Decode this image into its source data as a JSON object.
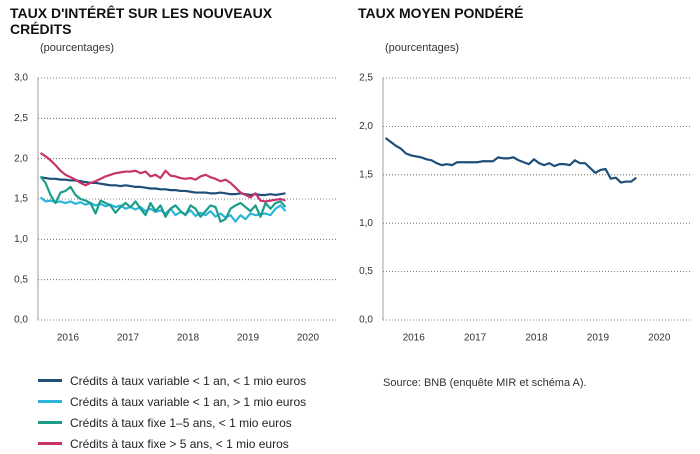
{
  "chart_data": [
    {
      "type": "line",
      "title": "TAUX D'INTÉRÊT SUR LES NOUVEAUX CRÉDITS",
      "subtitle": "(pourcentages)",
      "categories": [
        null,
        null,
        null,
        null,
        null,
        "2016",
        null,
        null,
        null,
        null,
        null,
        null,
        null,
        null,
        null,
        null,
        null,
        "2017",
        null,
        null,
        null,
        null,
        null,
        null,
        null,
        null,
        null,
        null,
        null,
        "2018",
        null,
        null,
        null,
        null,
        null,
        null,
        null,
        null,
        null,
        null,
        null,
        "2019",
        null,
        null,
        null,
        null,
        null,
        null,
        null,
        null,
        null,
        null,
        null,
        "2020",
        null,
        null,
        null,
        null,
        null,
        null
      ],
      "ylim": [
        0,
        3
      ],
      "yticks": [
        {
          "value": 0,
          "label": "0,0"
        },
        {
          "value": 0.5,
          "label": "0,5"
        },
        {
          "value": 1,
          "label": "1,0"
        },
        {
          "value": 1.5,
          "label": "1,5"
        },
        {
          "value": 2,
          "label": "2,0"
        },
        {
          "value": 2.5,
          "label": "2,5"
        },
        {
          "value": 3,
          "label": "3,0"
        }
      ],
      "grid": true,
      "series": [
        {
          "name": "Crédits à taux variable < 1 an, < 1 mio euros",
          "color": "#1f4e79",
          "values": [
            1.77,
            1.76,
            1.75,
            1.75,
            1.74,
            1.74,
            1.73,
            1.73,
            1.72,
            1.71,
            1.7,
            1.7,
            1.69,
            1.68,
            1.67,
            1.67,
            1.66,
            1.67,
            1.66,
            1.65,
            1.65,
            1.64,
            1.63,
            1.63,
            1.62,
            1.62,
            1.61,
            1.61,
            1.6,
            1.6,
            1.59,
            1.58,
            1.58,
            1.58,
            1.57,
            1.57,
            1.58,
            1.57,
            1.56,
            1.56,
            1.57,
            1.56,
            1.55,
            1.56,
            1.55,
            1.55,
            1.56,
            1.55,
            1.56,
            1.57,
            null,
            null,
            null,
            null,
            null,
            null,
            null,
            null,
            null,
            null
          ]
        },
        {
          "name": "Crédits à taux variable < 1 an, > 1 mio euros",
          "color": "#2bb5d8",
          "values": [
            1.52,
            1.47,
            1.48,
            1.46,
            1.47,
            1.45,
            1.47,
            1.44,
            1.46,
            1.43,
            1.45,
            1.42,
            1.44,
            1.41,
            1.43,
            1.4,
            1.42,
            1.38,
            1.4,
            1.37,
            1.4,
            1.35,
            1.38,
            1.34,
            1.36,
            1.32,
            1.38,
            1.3,
            1.34,
            1.31,
            1.36,
            1.29,
            1.33,
            1.3,
            1.35,
            1.28,
            1.32,
            1.27,
            1.3,
            1.22,
            1.3,
            1.25,
            1.32,
            1.3,
            1.31,
            1.32,
            1.3,
            1.38,
            1.42,
            1.35,
            null,
            null,
            null,
            null,
            null,
            null,
            null,
            null,
            null,
            null
          ]
        },
        {
          "name": "Crédits à taux fixe 1–5 ans, < 1 mio euros",
          "color": "#1a9e8a",
          "values": [
            1.78,
            1.7,
            1.55,
            1.45,
            1.58,
            1.6,
            1.65,
            1.55,
            1.5,
            1.48,
            1.45,
            1.32,
            1.48,
            1.45,
            1.42,
            1.33,
            1.4,
            1.45,
            1.4,
            1.47,
            1.38,
            1.3,
            1.45,
            1.35,
            1.42,
            1.28,
            1.38,
            1.42,
            1.35,
            1.3,
            1.42,
            1.38,
            1.28,
            1.35,
            1.42,
            1.4,
            1.22,
            1.25,
            1.38,
            1.42,
            1.45,
            1.4,
            1.35,
            1.42,
            1.28,
            1.45,
            1.38,
            1.45,
            1.47,
            1.4,
            null,
            null,
            null,
            null,
            null,
            null,
            null,
            null,
            null,
            null
          ]
        },
        {
          "name": "Crédits à taux fixe > 5 ans, < 1 mio euros",
          "color": "#c7336b",
          "values": [
            2.07,
            2.03,
            1.98,
            1.92,
            1.85,
            1.8,
            1.77,
            1.74,
            1.7,
            1.67,
            1.7,
            1.72,
            1.75,
            1.78,
            1.8,
            1.82,
            1.83,
            1.84,
            1.84,
            1.85,
            1.82,
            1.84,
            1.78,
            1.8,
            1.76,
            1.85,
            1.79,
            1.78,
            1.76,
            1.75,
            1.76,
            1.74,
            1.78,
            1.8,
            1.77,
            1.75,
            1.72,
            1.74,
            1.7,
            1.64,
            1.58,
            1.55,
            1.52,
            1.57,
            1.48,
            1.47,
            1.48,
            1.49,
            1.5,
            1.48,
            null,
            null,
            null,
            null,
            null,
            null,
            null,
            null,
            null,
            null
          ]
        }
      ]
    },
    {
      "type": "line",
      "title": "TAUX MOYEN PONDÉRÉ",
      "subtitle": "(pourcentages)",
      "source": "Source: BNB (enquête MIR et schéma A).",
      "categories": [
        null,
        null,
        null,
        null,
        null,
        "2016",
        null,
        null,
        null,
        null,
        null,
        null,
        null,
        null,
        null,
        null,
        null,
        "2017",
        null,
        null,
        null,
        null,
        null,
        null,
        null,
        null,
        null,
        null,
        null,
        "2018",
        null,
        null,
        null,
        null,
        null,
        null,
        null,
        null,
        null,
        null,
        null,
        "2019",
        null,
        null,
        null,
        null,
        null,
        null,
        null,
        null,
        null,
        null,
        null,
        "2020",
        null,
        null,
        null,
        null,
        null,
        null
      ],
      "ylim": [
        0,
        2.5
      ],
      "yticks": [
        {
          "value": 0,
          "label": "0,0"
        },
        {
          "value": 0.5,
          "label": "0,5"
        },
        {
          "value": 1,
          "label": "1,0"
        },
        {
          "value": 1.5,
          "label": "1,5"
        },
        {
          "value": 2,
          "label": "2,0"
        },
        {
          "value": 2.5,
          "label": "2,5"
        }
      ],
      "grid": true,
      "series": [
        {
          "name": null,
          "color": "#1f4e79",
          "values": [
            1.88,
            1.84,
            1.8,
            1.77,
            1.72,
            1.7,
            1.69,
            1.68,
            1.66,
            1.65,
            1.62,
            1.6,
            1.61,
            1.6,
            1.63,
            1.63,
            1.63,
            1.63,
            1.63,
            1.64,
            1.64,
            1.64,
            1.68,
            1.67,
            1.67,
            1.68,
            1.65,
            1.63,
            1.61,
            1.66,
            1.62,
            1.6,
            1.62,
            1.59,
            1.61,
            1.61,
            1.6,
            1.65,
            1.62,
            1.62,
            1.57,
            1.52,
            1.55,
            1.56,
            1.46,
            1.47,
            1.42,
            1.43,
            1.43,
            1.47,
            null,
            null,
            null,
            null,
            null,
            null,
            null,
            null,
            null,
            null
          ]
        }
      ]
    }
  ]
}
